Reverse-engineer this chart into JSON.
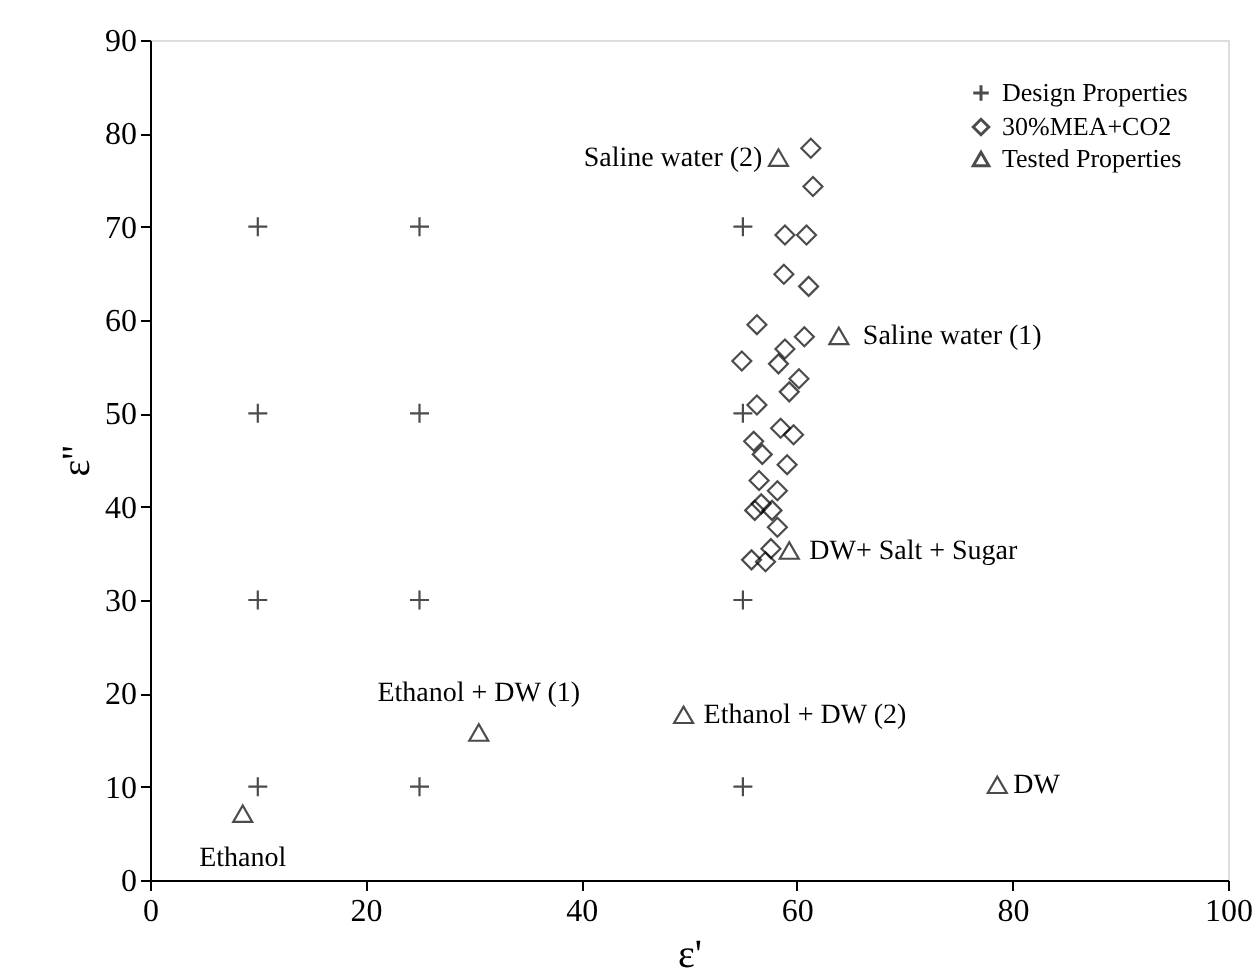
{
  "chart_data": {
    "type": "scatter",
    "xlabel": "ε'",
    "ylabel": "ε''",
    "xlim": [
      0,
      100
    ],
    "xticks": [
      0,
      20,
      40,
      60,
      80,
      100
    ],
    "ylim": [
      0,
      90
    ],
    "yticks": [
      0,
      10,
      20,
      30,
      40,
      50,
      60,
      70,
      80,
      90
    ],
    "grid": false,
    "legend": "top right",
    "series": [
      {
        "name": "Design Properties",
        "color": "#000000",
        "marker": "cross",
        "x": [
          10,
          25,
          55,
          10,
          25,
          55,
          10,
          25,
          55,
          10,
          25,
          55
        ],
        "values": [
          10,
          10,
          10,
          30,
          30,
          30,
          50,
          50,
          50,
          70,
          70,
          70
        ]
      },
      {
        "name": "30%MEA+CO2",
        "color": "#000000",
        "marker": "diamond",
        "x": [
          61.3,
          61.5,
          58.9,
          60.9,
          58.8,
          61.1,
          56.3,
          60.7,
          58.9,
          54.9,
          58.3,
          60.2,
          59.3,
          56.3,
          58.5,
          59.7,
          56.0,
          56.8,
          59.1,
          56.5,
          58.2,
          56.7,
          56.1,
          57.7,
          58.2,
          57.6,
          55.8,
          57.1
        ],
        "values": [
          78.4,
          74.3,
          69.1,
          69.1,
          64.9,
          63.6,
          59.5,
          58.2,
          56.9,
          55.6,
          55.3,
          53.7,
          52.3,
          50.9,
          48.4,
          47.7,
          47.0,
          45.6,
          44.5,
          42.8,
          41.7,
          40.3,
          39.6,
          39.6,
          37.8,
          35.5,
          34.3,
          34.1
        ]
      },
      {
        "name": "Tested Properties",
        "color": "#000000",
        "marker": "triangle",
        "x": [
          58.3,
          63.9,
          59.3,
          30.5,
          49.5,
          78.6,
          8.6
        ],
        "values": [
          77.4,
          58.3,
          35.3,
          15.8,
          17.7,
          10.2,
          7.1
        ]
      }
    ],
    "annotations": [
      {
        "text": "Saline water (2)",
        "x": 58.3,
        "y": 77.4
      },
      {
        "text": "Saline water (1)",
        "x": 63.9,
        "y": 58.3
      },
      {
        "text": "DW+ Salt + Sugar",
        "x": 59.3,
        "y": 35.3
      },
      {
        "text": "Ethanol + DW (1)",
        "x": 30.5,
        "y": 15.8
      },
      {
        "text": "Ethanol + DW (2)",
        "x": 49.5,
        "y": 17.7
      },
      {
        "text": "DW",
        "x": 78.6,
        "y": 10.2
      },
      {
        "text": "Ethanol",
        "x": 8.6,
        "y": 7.1
      }
    ]
  }
}
